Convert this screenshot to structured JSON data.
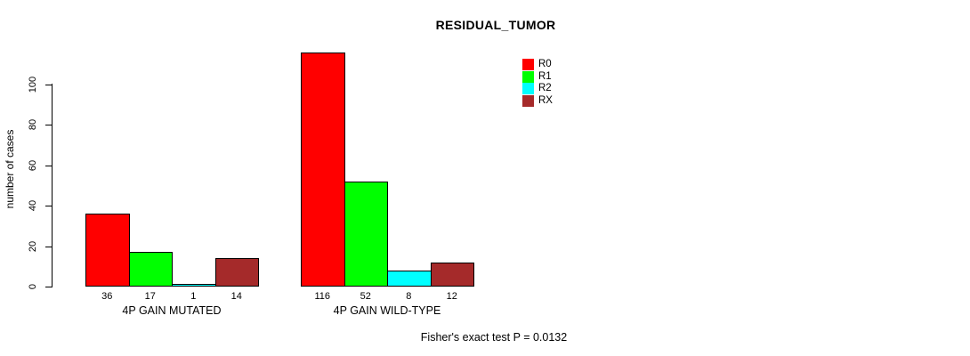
{
  "title": "RESIDUAL_TUMOR",
  "ylabel": "number of cases",
  "footer": "Fisher's exact test P = 0.0132",
  "chart_data": {
    "type": "bar",
    "title": "RESIDUAL_TUMOR",
    "xlabel": "",
    "ylabel": "number of cases",
    "categories": [
      "4P GAIN MUTATED",
      "4P GAIN WILD-TYPE"
    ],
    "series": [
      {
        "name": "R0",
        "color": "#ff0000",
        "values": [
          36,
          116
        ]
      },
      {
        "name": "R1",
        "color": "#00ff00",
        "values": [
          17,
          52
        ]
      },
      {
        "name": "R2",
        "color": "#00ffff",
        "values": [
          1,
          8
        ]
      },
      {
        "name": "RX",
        "color": "#a52a2a",
        "values": [
          14,
          12
        ]
      }
    ],
    "bar_value_labels": [
      [
        36,
        17,
        1,
        14
      ],
      [
        116,
        52,
        8,
        12
      ]
    ],
    "yticks": [
      0,
      20,
      40,
      60,
      80,
      100
    ],
    "ylim": [
      0,
      116
    ],
    "grid": false,
    "legend_position": "top-right",
    "bar_border_color": "#000000",
    "annotation": "Fisher's exact test P = 0.0132"
  }
}
